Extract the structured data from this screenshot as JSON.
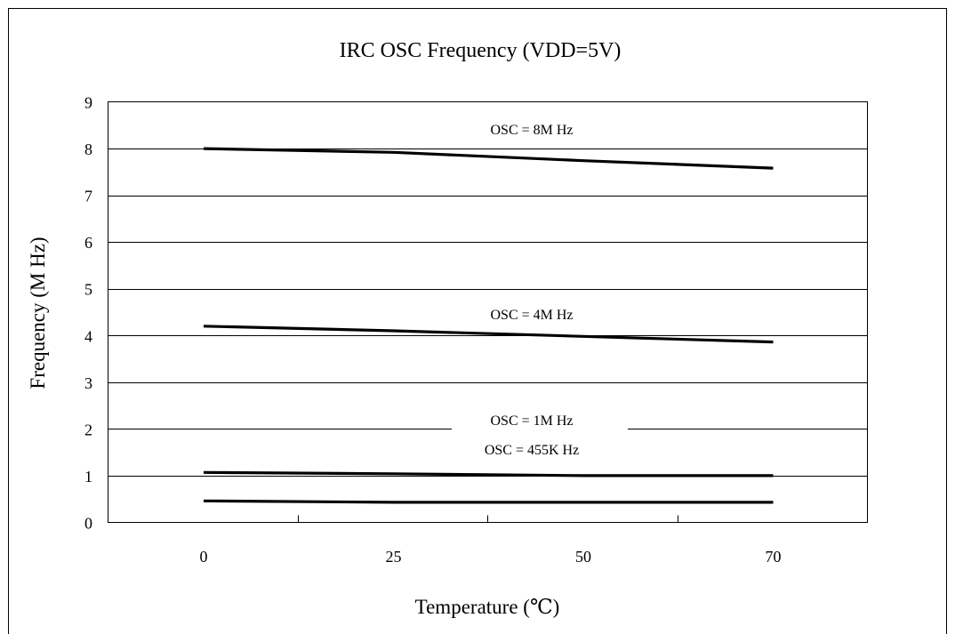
{
  "chart_data": {
    "type": "line",
    "title": "IRC OSC Frequency (VDD=5V)",
    "xlabel": "Temperature (℃)",
    "ylabel": "Frequency (M Hz)",
    "x_tick_labels": [
      "0",
      "25",
      "50",
      "70"
    ],
    "y_ticks": [
      0,
      1,
      2,
      3,
      4,
      5,
      6,
      7,
      8,
      9
    ],
    "ylim": [
      0,
      9
    ],
    "grid": "horizontal",
    "legend": "none",
    "series": [
      {
        "label": "OSC = 8M Hz",
        "x_index": [
          0,
          1,
          2,
          3
        ],
        "values": [
          8.0,
          7.92,
          7.74,
          7.58
        ]
      },
      {
        "label": "OSC = 4M Hz",
        "x_index": [
          0,
          1,
          2,
          3
        ],
        "values": [
          4.2,
          4.1,
          3.98,
          3.86
        ]
      },
      {
        "label": "OSC = 1M Hz",
        "x_index": [
          0,
          1,
          2,
          3
        ],
        "values": [
          1.07,
          1.04,
          1.0,
          1.0
        ]
      },
      {
        "label": "OSC = 455K Hz",
        "x_index": [
          0,
          1,
          2,
          3
        ],
        "values": [
          0.46,
          0.43,
          0.43,
          0.43
        ]
      }
    ],
    "line_color": "#000000"
  }
}
